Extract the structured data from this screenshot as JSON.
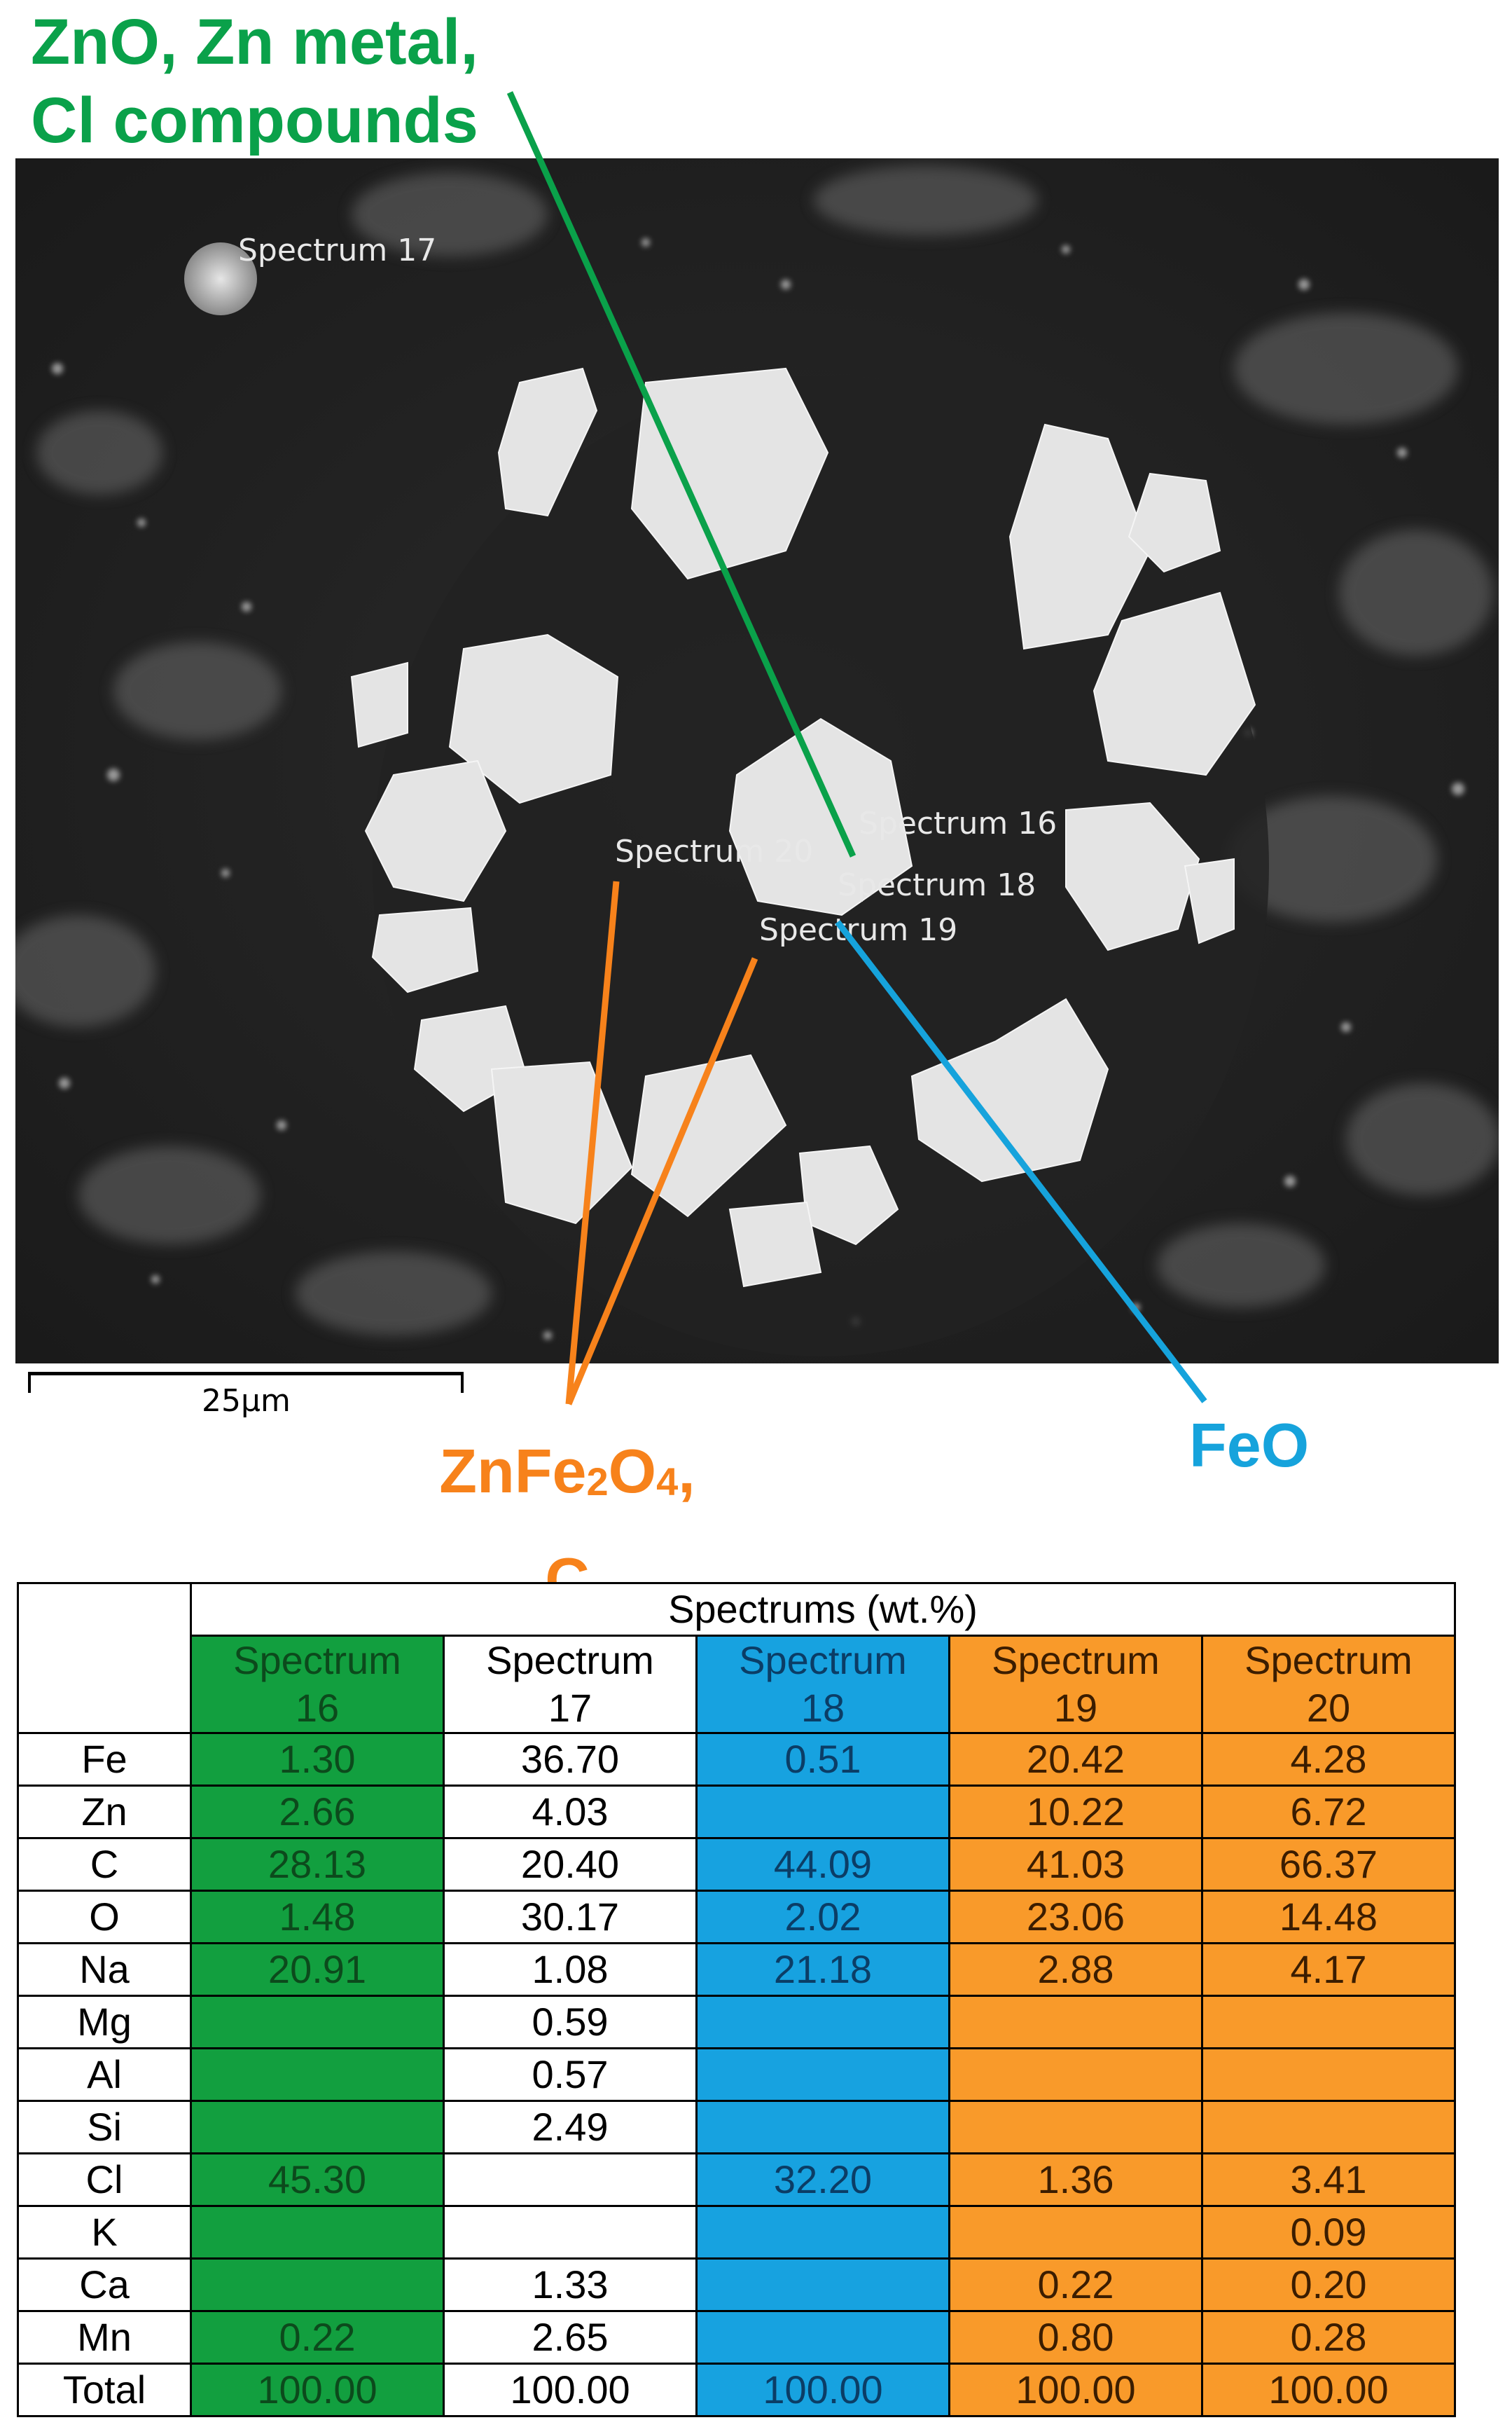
{
  "callouts": {
    "green_line1": "ZnO, Zn metal,",
    "green_line2": "Cl compounds",
    "orange_line1_a": "ZnFe",
    "orange_line1_sub1": "2",
    "orange_line1_b": "O",
    "orange_line1_sub2": "4",
    "orange_line1_c": ",",
    "orange_line2": "C",
    "blue": "FeO"
  },
  "micrograph": {
    "labels": {
      "s17": "Spectrum 17",
      "s16": "Spectrum 16",
      "s18": "Spectrum 18",
      "s19": "Spectrum 19",
      "s20": "Spectrum 20"
    },
    "scale_label": "25µm"
  },
  "table": {
    "group_header": "Spectrums (wt.%)",
    "columns": [
      {
        "line1": "Spectrum",
        "line2": "16",
        "color": "#129f3f"
      },
      {
        "line1": "Spectrum",
        "line2": "17",
        "color": "#ffffff"
      },
      {
        "line1": "Spectrum",
        "line2": "18",
        "color": "#17a2e0"
      },
      {
        "line1": "Spectrum",
        "line2": "19",
        "color": "#f99a2a"
      },
      {
        "line1": "Spectrum",
        "line2": "20",
        "color": "#f99a2a"
      }
    ],
    "rows": [
      {
        "element": "Fe",
        "values": [
          "1.30",
          "36.70",
          "0.51",
          "20.42",
          "4.28"
        ]
      },
      {
        "element": "Zn",
        "values": [
          "2.66",
          "4.03",
          "",
          "10.22",
          "6.72"
        ]
      },
      {
        "element": "C",
        "values": [
          "28.13",
          "20.40",
          "44.09",
          "41.03",
          "66.37"
        ]
      },
      {
        "element": "O",
        "values": [
          "1.48",
          "30.17",
          "2.02",
          "23.06",
          "14.48"
        ]
      },
      {
        "element": "Na",
        "values": [
          "20.91",
          "1.08",
          "21.18",
          "2.88",
          "4.17"
        ]
      },
      {
        "element": "Mg",
        "values": [
          "",
          "0.59",
          "",
          "",
          ""
        ]
      },
      {
        "element": "Al",
        "values": [
          "",
          "0.57",
          "",
          "",
          ""
        ]
      },
      {
        "element": "Si",
        "values": [
          "",
          "2.49",
          "",
          "",
          ""
        ]
      },
      {
        "element": "Cl",
        "values": [
          "45.30",
          "",
          "32.20",
          "1.36",
          "3.41"
        ]
      },
      {
        "element": "K",
        "values": [
          "",
          "",
          "",
          "",
          "0.09"
        ]
      },
      {
        "element": "Ca",
        "values": [
          "",
          "1.33",
          "",
          "0.22",
          "0.20"
        ]
      },
      {
        "element": "Mn",
        "values": [
          "0.22",
          "2.65",
          "",
          "0.80",
          "0.28"
        ]
      },
      {
        "element": "Total",
        "values": [
          "100.00",
          "100.00",
          "100.00",
          "100.00",
          "100.00"
        ]
      }
    ]
  }
}
